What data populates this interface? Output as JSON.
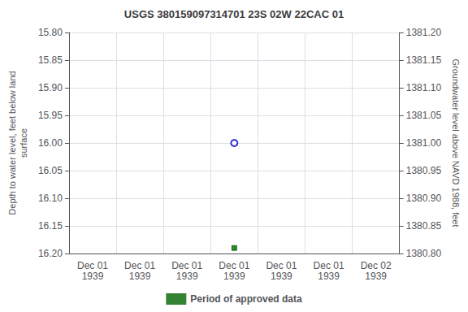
{
  "chart_data": {
    "type": "scatter",
    "title": "USGS 380159097314701 23S 02W 22CAC 01",
    "ylabel": "Depth to water level, feet below land\nsurface",
    "y2label": "Groundwater level above NAVD 1988, feet",
    "categories": [
      "Dec 01\n1939",
      "Dec 01\n1939",
      "Dec 01\n1939",
      "Dec 01\n1939",
      "Dec 01\n1939",
      "Dec 01\n1939",
      "Dec 02\n1939"
    ],
    "series": [
      {
        "values": [
          null,
          null,
          null,
          16.0,
          null,
          null,
          null
        ],
        "color": "#0000cc",
        "marker": "open_circle"
      },
      {
        "name": "Period of approved data",
        "values": [
          null,
          null,
          null,
          16.19,
          null,
          null,
          null
        ],
        "color": "#006400",
        "marker": "square"
      }
    ],
    "ylim": [
      16.2,
      15.8
    ],
    "yticks": [
      {
        "value": 15.8,
        "label": "15.80"
      },
      {
        "value": 15.85,
        "label": "15.85"
      },
      {
        "value": 15.9,
        "label": "15.90"
      },
      {
        "value": 15.95,
        "label": "15.95"
      },
      {
        "value": 16.0,
        "label": "16.00"
      },
      {
        "value": 16.05,
        "label": "16.05"
      },
      {
        "value": 16.1,
        "label": "16.10"
      },
      {
        "value": 16.15,
        "label": "16.15"
      },
      {
        "value": 16.2,
        "label": "16.20"
      }
    ],
    "y2lim": [
      1380.8,
      1381.2
    ],
    "y2ticks": [
      {
        "value": 1381.2,
        "label": "1381.20"
      },
      {
        "value": 1381.15,
        "label": "1381.15"
      },
      {
        "value": 1381.1,
        "label": "1381.10"
      },
      {
        "value": 1381.05,
        "label": "1381.05"
      },
      {
        "value": 1381.0,
        "label": "1381.00"
      },
      {
        "value": 1380.95,
        "label": "1380.95"
      },
      {
        "value": 1380.9,
        "label": "1380.90"
      },
      {
        "value": 1380.85,
        "label": "1380.85"
      },
      {
        "value": 1380.8,
        "label": "1380.80"
      }
    ],
    "grid": true,
    "legend": "bottom"
  }
}
